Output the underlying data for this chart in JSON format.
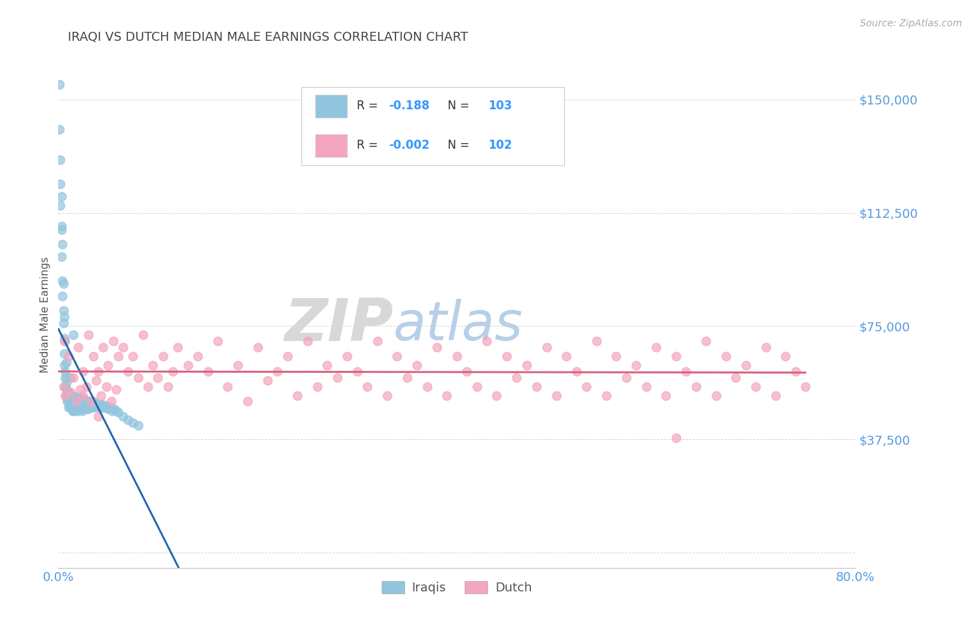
{
  "title": "IRAQI VS DUTCH MEDIAN MALE EARNINGS CORRELATION CHART",
  "source": "Source: ZipAtlas.com",
  "ylabel": "Median Male Earnings",
  "xlim": [
    0.0,
    0.8
  ],
  "ylim": [
    -5000,
    162500
  ],
  "yticks": [
    0,
    37500,
    75000,
    112500,
    150000
  ],
  "ytick_labels": [
    "",
    "$37,500",
    "$75,000",
    "$112,500",
    "$150,000"
  ],
  "xtick_labels": [
    "0.0%",
    "80.0%"
  ],
  "xtick_pos": [
    0.0,
    0.8
  ],
  "R1": "-0.188",
  "N1": "103",
  "R2": "-0.002",
  "N2": "102",
  "iraqis_color": "#92c5de",
  "dutch_color": "#f4a6be",
  "iraqis_line_color": "#2166ac",
  "dutch_line_color": "#d6607a",
  "title_color": "#444444",
  "axis_label_color": "#555555",
  "tick_color": "#5599dd",
  "watermark_zip_color": "#c8d8e8",
  "watermark_atlas_color": "#b0c8e0",
  "background_color": "#ffffff",
  "iraqis_x": [
    0.001,
    0.002,
    0.002,
    0.003,
    0.003,
    0.004,
    0.004,
    0.005,
    0.005,
    0.006,
    0.006,
    0.006,
    0.007,
    0.007,
    0.007,
    0.008,
    0.008,
    0.008,
    0.009,
    0.009,
    0.009,
    0.01,
    0.01,
    0.01,
    0.011,
    0.011,
    0.012,
    0.012,
    0.013,
    0.013,
    0.014,
    0.014,
    0.015,
    0.015,
    0.015,
    0.016,
    0.016,
    0.017,
    0.017,
    0.018,
    0.018,
    0.019,
    0.019,
    0.02,
    0.02,
    0.021,
    0.021,
    0.022,
    0.022,
    0.023,
    0.023,
    0.024,
    0.024,
    0.025,
    0.025,
    0.026,
    0.027,
    0.028,
    0.028,
    0.029,
    0.03,
    0.03,
    0.031,
    0.032,
    0.033,
    0.034,
    0.035,
    0.036,
    0.037,
    0.038,
    0.039,
    0.04,
    0.041,
    0.042,
    0.043,
    0.044,
    0.045,
    0.046,
    0.048,
    0.049,
    0.05,
    0.052,
    0.054,
    0.056,
    0.058,
    0.06,
    0.065,
    0.07,
    0.075,
    0.08,
    0.001,
    0.002,
    0.003,
    0.004,
    0.003,
    0.005,
    0.006,
    0.007,
    0.008,
    0.009,
    0.01,
    0.012,
    0.015
  ],
  "iraqis_y": [
    140000,
    122000,
    115000,
    107000,
    98000,
    90000,
    85000,
    80000,
    76000,
    71000,
    66000,
    62000,
    60000,
    58000,
    55000,
    56000,
    54000,
    52000,
    53000,
    51000,
    50000,
    52000,
    50000,
    48000,
    51000,
    49000,
    50000,
    48000,
    52000,
    49000,
    50000,
    47000,
    52000,
    49000,
    47000,
    51000,
    48000,
    50000,
    47000,
    51000,
    49000,
    50000,
    47000,
    51000,
    49000,
    50000,
    47500,
    51000,
    48000,
    50000,
    47500,
    50000,
    47000,
    51000,
    48000,
    50000,
    49500,
    50000,
    47500,
    49000,
    50000,
    47500,
    49000,
    50000,
    48000,
    49000,
    50000,
    48000,
    49500,
    49000,
    48500,
    49000,
    48000,
    49000,
    48500,
    48000,
    49000,
    48000,
    48500,
    48000,
    47500,
    48000,
    47000,
    47500,
    47000,
    46500,
    45000,
    44000,
    43000,
    42000,
    155000,
    130000,
    118000,
    102000,
    108000,
    89000,
    78000,
    70000,
    63000,
    58000,
    53000,
    58000,
    72000
  ],
  "dutch_x": [
    0.005,
    0.007,
    0.01,
    0.012,
    0.015,
    0.018,
    0.02,
    0.022,
    0.025,
    0.028,
    0.03,
    0.033,
    0.035,
    0.038,
    0.04,
    0.043,
    0.045,
    0.048,
    0.05,
    0.053,
    0.055,
    0.058,
    0.06,
    0.065,
    0.07,
    0.075,
    0.08,
    0.085,
    0.09,
    0.095,
    0.1,
    0.105,
    0.11,
    0.115,
    0.12,
    0.13,
    0.14,
    0.15,
    0.16,
    0.17,
    0.18,
    0.19,
    0.2,
    0.21,
    0.22,
    0.23,
    0.24,
    0.25,
    0.26,
    0.27,
    0.28,
    0.29,
    0.3,
    0.31,
    0.32,
    0.33,
    0.34,
    0.35,
    0.36,
    0.37,
    0.38,
    0.39,
    0.4,
    0.41,
    0.42,
    0.43,
    0.44,
    0.45,
    0.46,
    0.47,
    0.48,
    0.49,
    0.5,
    0.51,
    0.52,
    0.53,
    0.54,
    0.55,
    0.56,
    0.57,
    0.58,
    0.59,
    0.6,
    0.61,
    0.62,
    0.63,
    0.64,
    0.65,
    0.66,
    0.67,
    0.68,
    0.69,
    0.7,
    0.71,
    0.72,
    0.73,
    0.74,
    0.75,
    0.006,
    0.025,
    0.04,
    0.62
  ],
  "dutch_y": [
    55000,
    52000,
    65000,
    53000,
    58000,
    50000,
    68000,
    54000,
    60000,
    55000,
    72000,
    50000,
    65000,
    57000,
    60000,
    52000,
    68000,
    55000,
    62000,
    50000,
    70000,
    54000,
    65000,
    68000,
    60000,
    65000,
    58000,
    72000,
    55000,
    62000,
    58000,
    65000,
    55000,
    60000,
    68000,
    62000,
    65000,
    60000,
    70000,
    55000,
    62000,
    50000,
    68000,
    57000,
    60000,
    65000,
    52000,
    70000,
    55000,
    62000,
    58000,
    65000,
    60000,
    55000,
    70000,
    52000,
    65000,
    58000,
    62000,
    55000,
    68000,
    52000,
    65000,
    60000,
    55000,
    70000,
    52000,
    65000,
    58000,
    62000,
    55000,
    68000,
    52000,
    65000,
    60000,
    55000,
    70000,
    52000,
    65000,
    58000,
    62000,
    55000,
    68000,
    52000,
    65000,
    60000,
    55000,
    70000,
    52000,
    65000,
    58000,
    62000,
    55000,
    68000,
    52000,
    65000,
    60000,
    55000,
    70000,
    52000,
    45000,
    38000
  ]
}
